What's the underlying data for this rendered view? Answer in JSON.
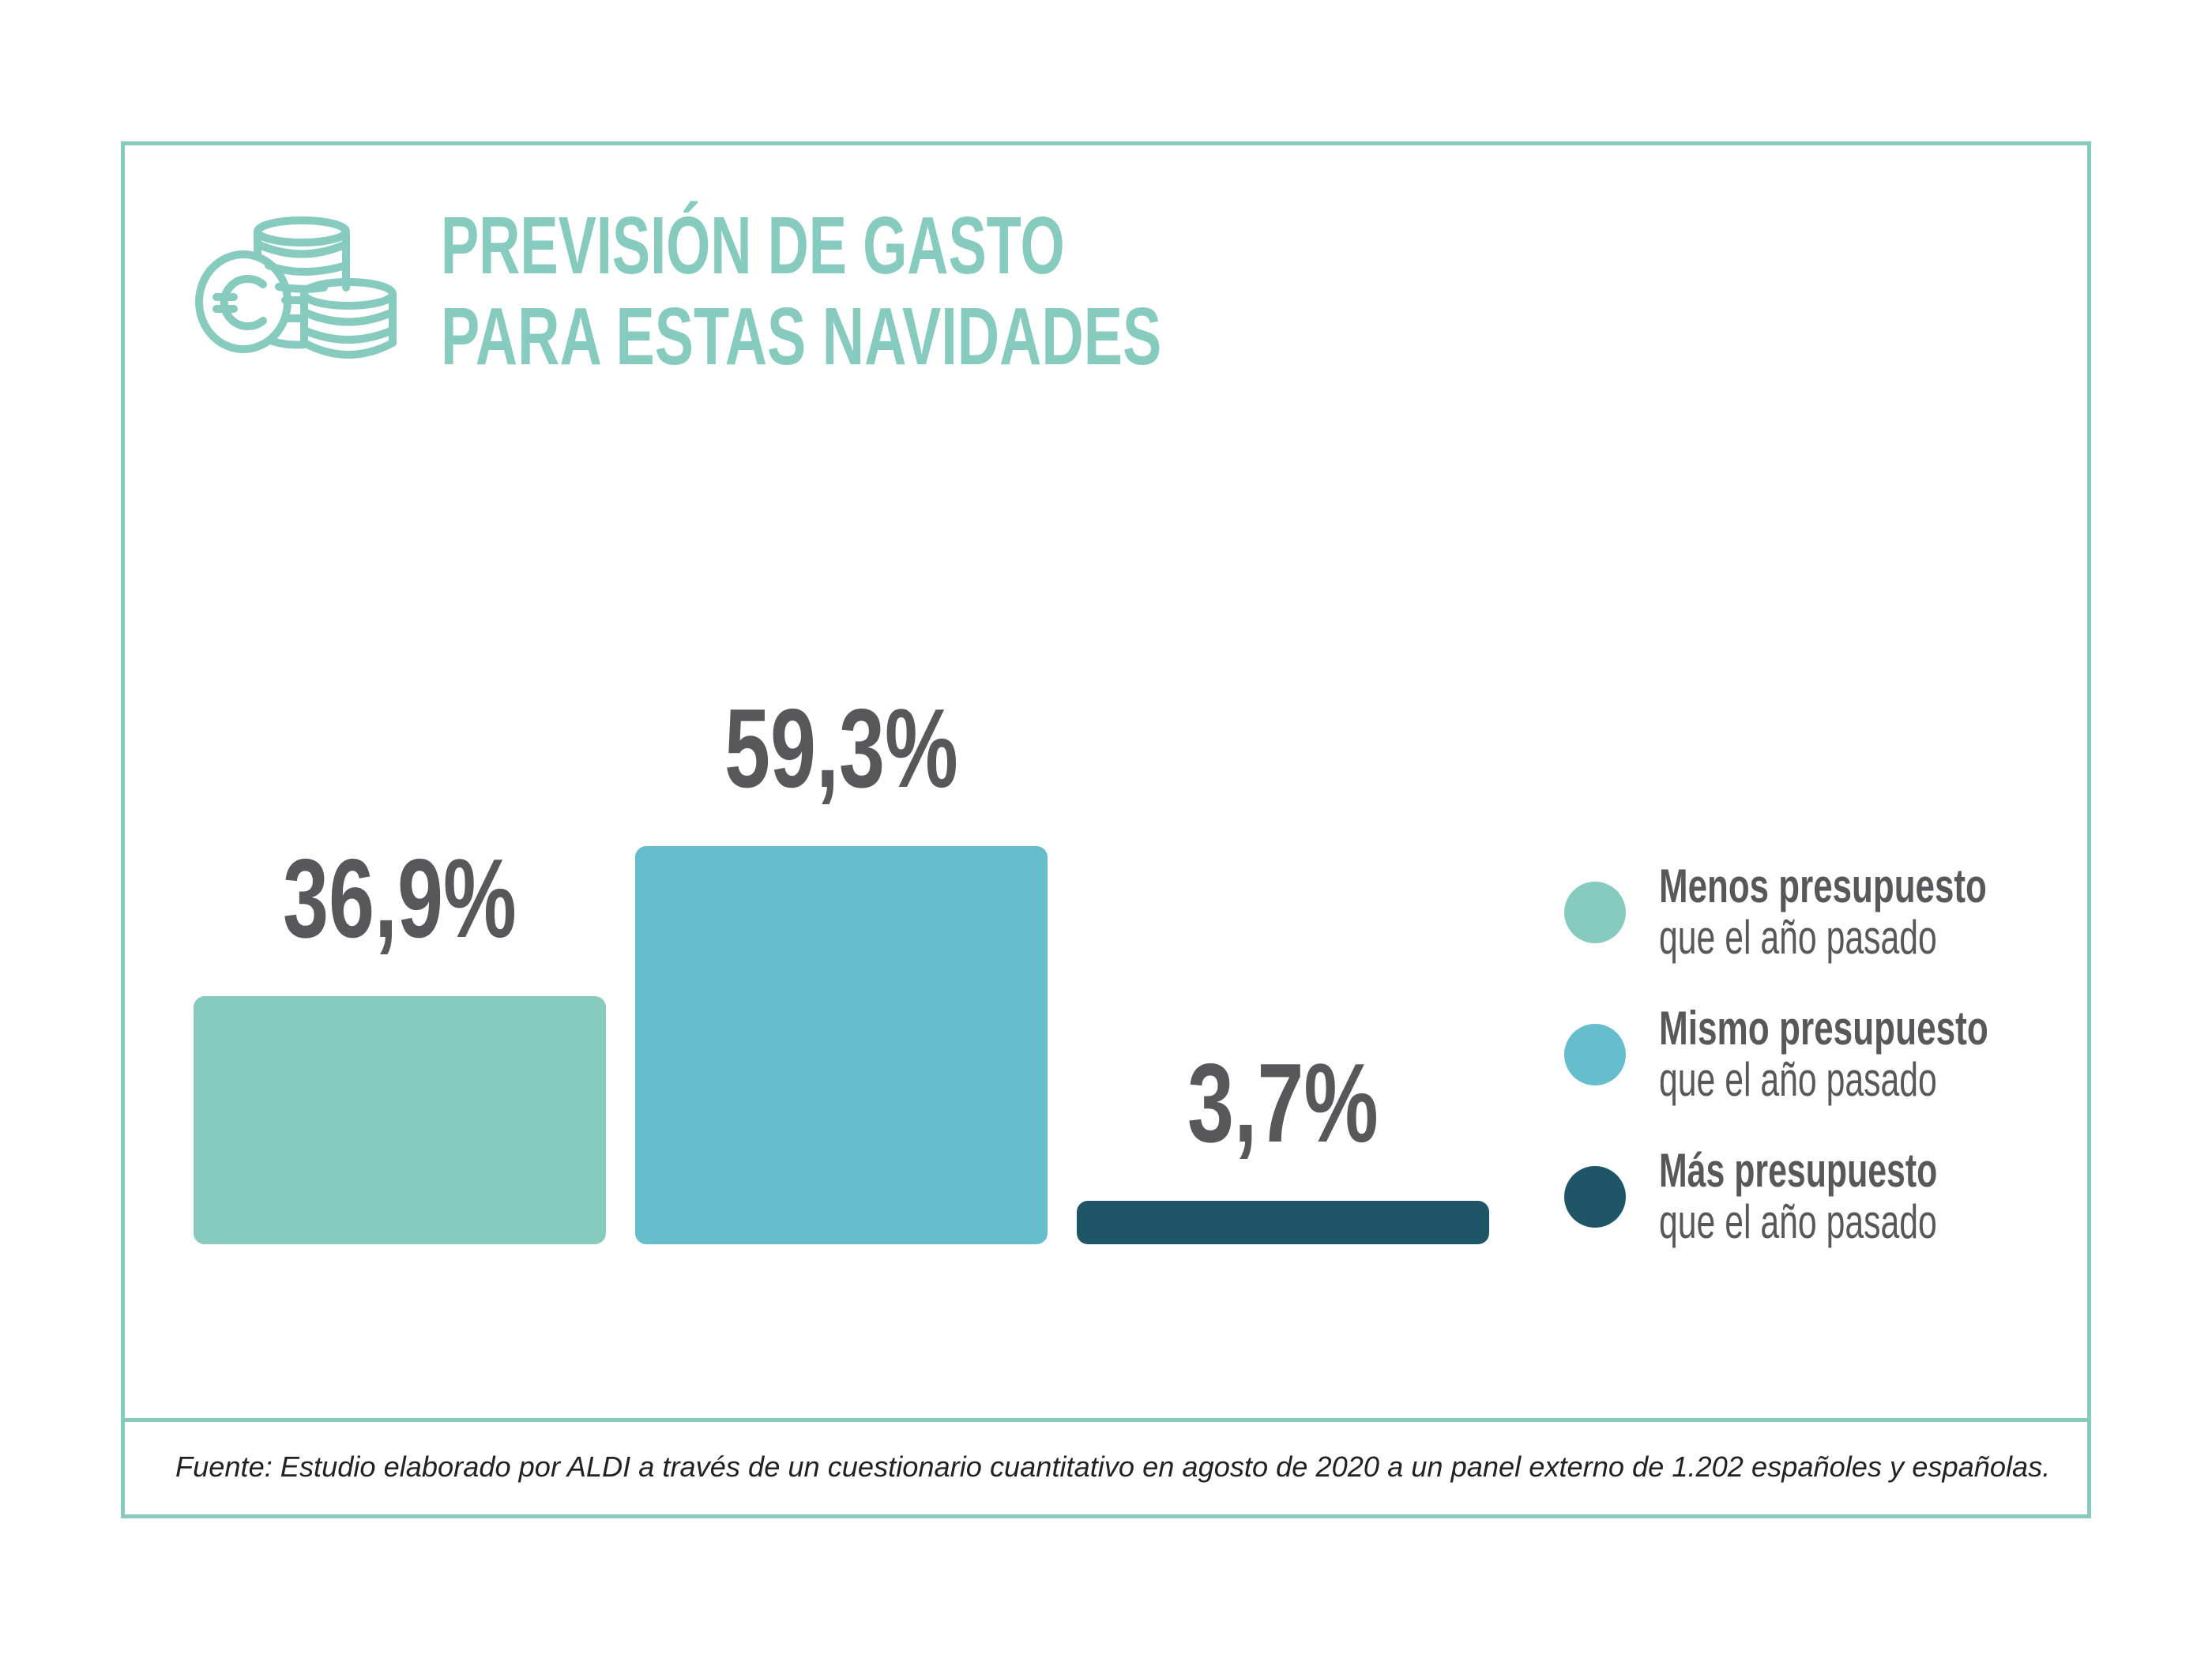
{
  "header": {
    "title_line_1": "PREVISIÓN DE GASTO",
    "title_line_2": "PARA ESTAS NAVIDADES",
    "icon": "euro-coins-stack-icon"
  },
  "colors": {
    "accent": "#87cbbf",
    "text": "#58585a",
    "footer_text": "#222222",
    "menos": "#87cbbf",
    "mismo": "#66bdcb",
    "mas": "#1f5667"
  },
  "chart_data": {
    "type": "bar",
    "title": "PREVISIÓN DE GASTO PARA ESTAS NAVIDADES",
    "xlabel": "",
    "ylabel": "",
    "grid": false,
    "axes_visible": false,
    "legend_position": "right",
    "categories": [
      "Menos presupuesto que el año pasado",
      "Mismo presupuesto que el año pasado",
      "Más presupuesto que el año pasado"
    ],
    "values": [
      36.9,
      59.3,
      3.7
    ],
    "unit": "%",
    "data_labels": [
      "36,9%",
      "59,3%",
      "3,7%"
    ],
    "series_colors": [
      "#87cbbf",
      "#66bdcb",
      "#1f5667"
    ],
    "ylim": [
      0,
      60
    ]
  },
  "legend": [
    {
      "line_1": "Menos presupuesto",
      "line_2": "que el año pasado",
      "color": "#87cbbf"
    },
    {
      "line_1": "Mismo presupuesto",
      "line_2": "que el año pasado",
      "color": "#66bdcb"
    },
    {
      "line_1": "Más presupuesto",
      "line_2": "que el año pasado",
      "color": "#1f5667"
    }
  ],
  "footer": {
    "source": "Fuente: Estudio elaborado por ALDI a través de un cuestionario cuantitativo en agosto de 2020 a un panel externo de 1.202 españoles y españolas."
  }
}
